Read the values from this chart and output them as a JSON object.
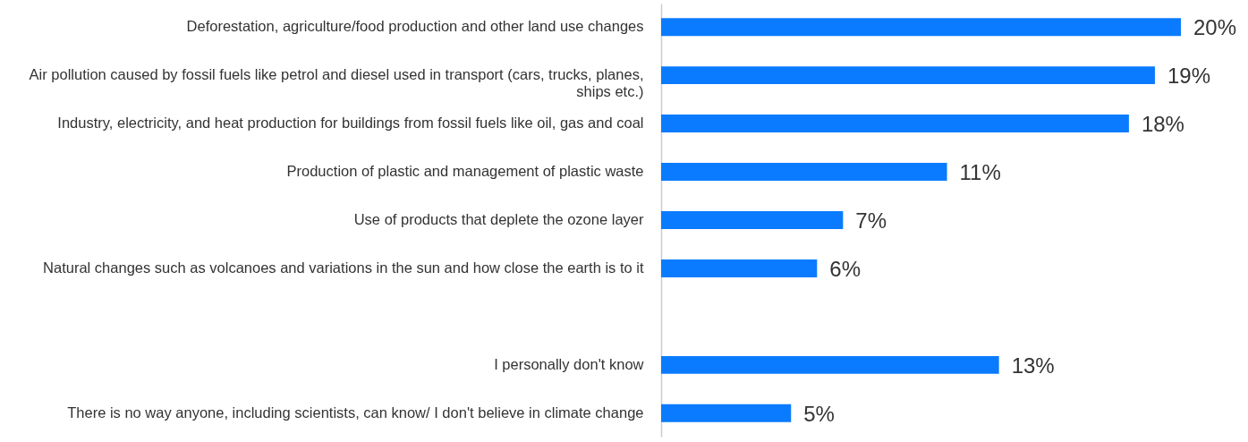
{
  "chart_data": {
    "type": "bar",
    "orientation": "horizontal",
    "categories": [
      "Deforestation, agriculture/food production and other land use changes",
      "Air pollution caused by fossil fuels like petrol and diesel used in transport (cars, trucks, planes, ships etc.)",
      "Industry, electricity, and heat production for buildings from fossil fuels like oil, gas and coal",
      "Production of plastic and management of plastic waste",
      "Use of products that deplete the ozone layer",
      "Natural changes such as volcanoes and variations in the sun and how close the earth is to it",
      null,
      "I personally don't know",
      "There is no way anyone, including scientists, can know/ I don't believe in climate change"
    ],
    "values": [
      20,
      19,
      18,
      11,
      7,
      6,
      null,
      13,
      5
    ],
    "value_labels": [
      "20%",
      "19%",
      "18%",
      "11%",
      "7%",
      "6%",
      null,
      "13%",
      "5%"
    ],
    "color": "#0a7bff"
  }
}
